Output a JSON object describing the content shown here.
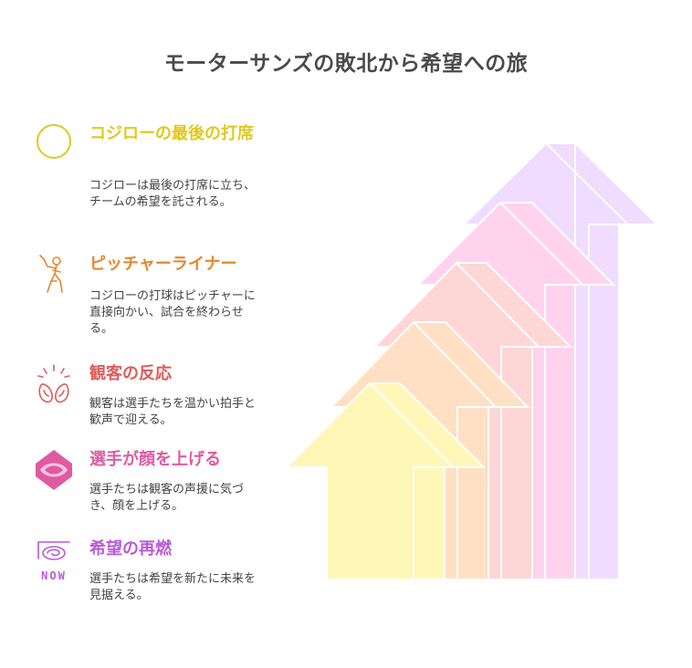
{
  "title": "モーターサンズの敗北から希望への旅",
  "colors": {
    "step1": "#e2c81f",
    "step2": "#e2882e",
    "step3": "#e05a5a",
    "step4": "#e05aa0",
    "step5": "#b85ad8",
    "arrow1": "#fff7b8",
    "arrow2": "#ffe0c4",
    "arrow3": "#ffd6d6",
    "arrow4": "#ffd3ee",
    "arrow5": "#f0dcff"
  },
  "steps": [
    {
      "heading": "コジローの最後の打席",
      "description": "コジローは最後の打席に立ち、チームの希望を託される。",
      "icon": "circle-icon"
    },
    {
      "heading": "ピッチャーライナー",
      "description": "コジローの打球はピッチャーに直接向かい、試合を終わらせる。",
      "icon": "batter-icon"
    },
    {
      "heading": "観客の反応",
      "description": "観客は選手たちを温かい拍手と歓声で迎える。",
      "icon": "clapping-hands-icon"
    },
    {
      "heading": "選手が顔を上げる",
      "description": "選手たちは観客の声援に気づき、顔を上げる。",
      "icon": "eye-icon"
    },
    {
      "heading": "希望の再燃",
      "description": "選手たちは希望を新たに未来を見据える。",
      "icon": "now-icon",
      "icon_text": "NOW"
    }
  ]
}
